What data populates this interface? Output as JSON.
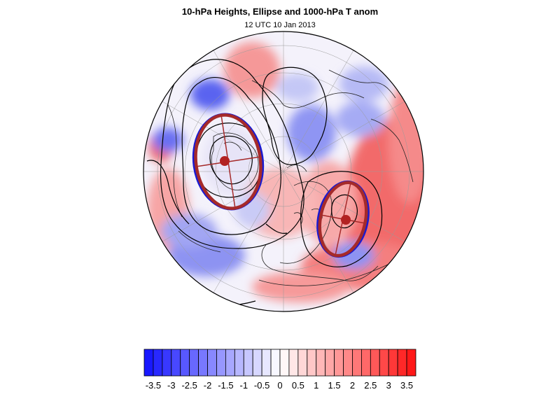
{
  "title": "10-hPa Heights, Ellipse and 1000-hPa T anom",
  "subtitle": "12 UTC 10 Jan 2013",
  "colorbar": {
    "levels": [
      -3.75,
      -3.5,
      -3.25,
      -3,
      -2.75,
      -2.5,
      -2.25,
      -2,
      -1.75,
      -1.5,
      -1.25,
      -1,
      -0.75,
      -0.5,
      -0.25,
      0,
      0.25,
      0.5,
      0.75,
      1,
      1.25,
      1.5,
      1.75,
      2,
      2.25,
      2.5,
      2.75,
      3,
      3.25,
      3.5,
      3.75
    ],
    "tick_labels": [
      "-3.5",
      "-3",
      "-2.5",
      "-2",
      "-1.5",
      "-1",
      "-0.5",
      "0",
      "0.5",
      "1",
      "1.5",
      "2",
      "2.5",
      "3",
      "3.5"
    ],
    "colors": {
      "min": "#1010ff",
      "mid": "#ffffff",
      "max": "#ff1010"
    }
  },
  "map": {
    "projection": "orthographic-north-polar",
    "ellipse_color": "#a52a2a",
    "contour_color": "#000000"
  }
}
